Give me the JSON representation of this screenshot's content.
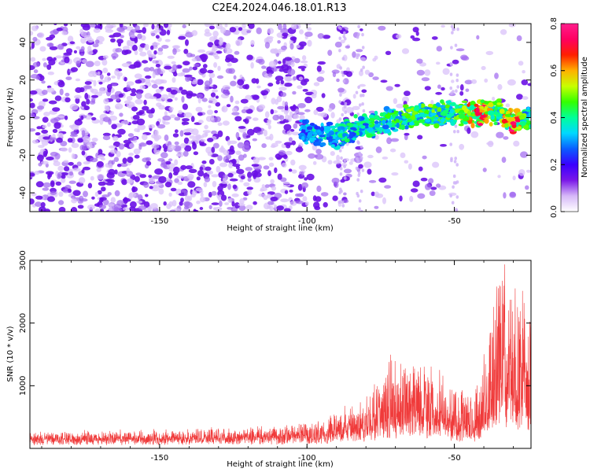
{
  "title": "C2E4.2024.046.18.01.R13",
  "chart_data": [
    {
      "type": "heatmap",
      "xlabel": "Height of straight line (km)",
      "ylabel": "Frequency (Hz)",
      "xlim": [
        -194,
        -24
      ],
      "ylim": [
        -50,
        50
      ],
      "xticks": [
        -150,
        -100,
        -50
      ],
      "yticks": [
        -40,
        -20,
        0,
        20,
        40
      ],
      "colorbar": {
        "label": "Normalized spectral amplitude",
        "range": [
          0.0,
          0.8
        ],
        "ticks": [
          "0.0",
          "0.2",
          "0.4",
          "0.6",
          "0.8"
        ],
        "colors": [
          "#ffffff",
          "#d6b8f8",
          "#7a18e8",
          "#3a00ff",
          "#0a5cff",
          "#00d8ff",
          "#00ff9a",
          "#34ff00",
          "#c8ff00",
          "#ffb000",
          "#ff2000",
          "#ff0060",
          "#ff1e8c"
        ]
      },
      "signal_band": {
        "description": "strong signal ridge rising from about -10 Hz near -100 km to about +5 Hz near -25 km",
        "points": [
          {
            "x": -102,
            "y": -7,
            "amp": 0.22
          },
          {
            "x": -90,
            "y": -10,
            "amp": 0.3
          },
          {
            "x": -80,
            "y": -4,
            "amp": 0.3
          },
          {
            "x": -70,
            "y": -1,
            "amp": 0.35
          },
          {
            "x": -60,
            "y": 2,
            "amp": 0.4
          },
          {
            "x": -50,
            "y": 2,
            "amp": 0.35
          },
          {
            "x": -42,
            "y": 2,
            "amp": 0.7
          },
          {
            "x": -35,
            "y": 4,
            "amp": 0.4
          },
          {
            "x": -30,
            "y": -3,
            "amp": 0.75
          },
          {
            "x": -26,
            "y": 0,
            "amp": 0.35
          }
        ]
      }
    },
    {
      "type": "line",
      "xlabel": "Height of straight line (km)",
      "ylabel": "SNR (10 * v/v)",
      "xlim": [
        -194,
        -24
      ],
      "ylim": [
        0,
        3000
      ],
      "xticks": [
        -150,
        -100,
        -50
      ],
      "yticks": [
        1000,
        2000,
        3000
      ],
      "color": "#f03a3a",
      "envelope": [
        {
          "x": -194,
          "base": 120,
          "peak": 260
        },
        {
          "x": -150,
          "base": 130,
          "peak": 280
        },
        {
          "x": -110,
          "base": 150,
          "peak": 330
        },
        {
          "x": -95,
          "base": 170,
          "peak": 420
        },
        {
          "x": -90,
          "base": 200,
          "peak": 600
        },
        {
          "x": -80,
          "base": 260,
          "peak": 750
        },
        {
          "x": -72,
          "base": 350,
          "peak": 1450
        },
        {
          "x": -65,
          "base": 380,
          "peak": 1400
        },
        {
          "x": -55,
          "base": 350,
          "peak": 1200
        },
        {
          "x": -48,
          "base": 240,
          "peak": 900
        },
        {
          "x": -42,
          "base": 240,
          "peak": 1000
        },
        {
          "x": -37,
          "base": 450,
          "peak": 2200
        },
        {
          "x": -33,
          "base": 800,
          "peak": 3000
        },
        {
          "x": -28,
          "base": 550,
          "peak": 2600
        },
        {
          "x": -24,
          "base": 500,
          "peak": 2500
        }
      ]
    }
  ]
}
